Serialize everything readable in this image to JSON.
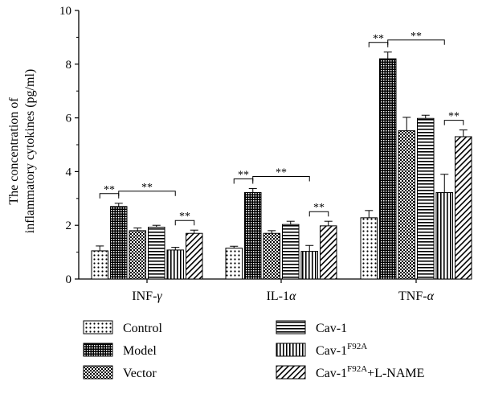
{
  "chart_data": {
    "type": "bar",
    "ylabel_line1": "The concentration of",
    "ylabel_line2": "inflammatory cytokines (pg/ml)",
    "ylim": [
      0,
      10
    ],
    "yticks": [
      "0",
      "2",
      "4",
      "6",
      "8",
      "10"
    ],
    "categories": [
      {
        "base": "INF-",
        "greek": "γ"
      },
      {
        "base": "IL-1",
        "greek": "α"
      },
      {
        "base": "TNF-",
        "greek": "α"
      }
    ],
    "series": [
      {
        "name": "Control",
        "pattern": "dots",
        "values": [
          1.05,
          1.15,
          2.28
        ],
        "errors": [
          0.18,
          0.07,
          0.27
        ]
      },
      {
        "name": "Model",
        "pattern": "crosshatch",
        "values": [
          2.7,
          3.22,
          8.2
        ],
        "errors": [
          0.12,
          0.15,
          0.25
        ]
      },
      {
        "name": "Vector",
        "pattern": "checker",
        "values": [
          1.8,
          1.7,
          5.52
        ],
        "errors": [
          0.1,
          0.1,
          0.5
        ]
      },
      {
        "name": "Cav-1",
        "pattern": "horizontal",
        "values": [
          1.93,
          2.03,
          5.98
        ],
        "errors": [
          0.07,
          0.12,
          0.12
        ]
      },
      {
        "name": "Cav-1",
        "sup": "F92A",
        "pattern": "vertical",
        "values": [
          1.08,
          1.03,
          3.22
        ],
        "errors": [
          0.1,
          0.22,
          0.68
        ]
      },
      {
        "name": "Cav-1",
        "sup": "F92A",
        "suffix": "+L-NAME",
        "pattern": "diagonal",
        "values": [
          1.7,
          1.98,
          5.3
        ],
        "errors": [
          0.12,
          0.17,
          0.25
        ]
      }
    ],
    "significance_label": "**",
    "significance_brackets": [
      {
        "category": 0,
        "from": 0,
        "to": 1
      },
      {
        "category": 0,
        "from": 1,
        "to": 4
      },
      {
        "category": 0,
        "from": 4,
        "to": 5
      },
      {
        "category": 1,
        "from": 0,
        "to": 1
      },
      {
        "category": 1,
        "from": 1,
        "to": 4
      },
      {
        "category": 1,
        "from": 4,
        "to": 5
      },
      {
        "category": 2,
        "from": 0,
        "to": 1
      },
      {
        "category": 2,
        "from": 1,
        "to": 4
      },
      {
        "category": 2,
        "from": 4,
        "to": 5
      }
    ],
    "legend_placement": "bottom",
    "grid": false
  }
}
